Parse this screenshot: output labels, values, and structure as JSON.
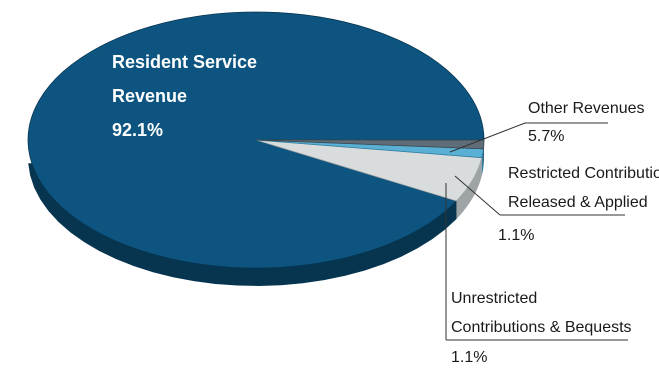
{
  "chart_data": {
    "type": "pie",
    "style": "3d",
    "slices": [
      {
        "name": "Resident Service Revenue",
        "label_lines": [
          "Resident Service",
          "Revenue"
        ],
        "value": 92.1,
        "value_label": "92.1%",
        "color": "#0d5580",
        "side_color": "#073550"
      },
      {
        "name": "Other Revenues",
        "label_lines": [
          "Other Revenues"
        ],
        "value": 5.7,
        "value_label": "5.7%",
        "color": "#d9dcdc",
        "side_color": "#9ea3a6"
      },
      {
        "name": "Restricted Contributions Released & Applied",
        "label_lines": [
          "Restricted Contribution",
          "Released & Applied"
        ],
        "value": 1.1,
        "value_label": "1.1%",
        "color": "#5ab0d4",
        "side_color": "#2f7fa3"
      },
      {
        "name": "Unrestricted Contributions & Bequests",
        "label_lines": [
          "Unrestricted",
          "Contributions & Bequests"
        ],
        "value": 1.1,
        "value_label": "1.1%",
        "color": "#5f6d78",
        "side_color": "#3b454d"
      }
    ],
    "legend": "none"
  }
}
